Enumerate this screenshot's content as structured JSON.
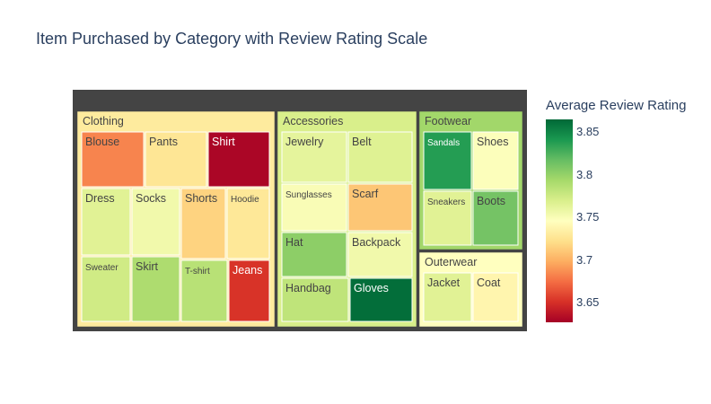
{
  "title": "Item Purchased by Category with Review Rating Scale",
  "colorbar": {
    "title": "Average Review Rating",
    "ticks": [
      "3.85",
      "3.8",
      "3.75",
      "3.7",
      "3.65"
    ],
    "tick_values": [
      3.85,
      3.8,
      3.75,
      3.7,
      3.65
    ],
    "range": [
      3.627,
      3.865
    ]
  },
  "chart_data": {
    "type": "treemap",
    "title": "Item Purchased by Category with Review Rating Scale",
    "color_label": "Average Review Rating",
    "categories": [
      {
        "name": "Clothing",
        "rating": 3.731,
        "items": [
          {
            "name": "Blouse",
            "rating": 3.683
          },
          {
            "name": "Pants",
            "rating": 3.727
          },
          {
            "name": "Shirt",
            "rating": 3.63
          },
          {
            "name": "Dress",
            "rating": 3.765
          },
          {
            "name": "Socks",
            "rating": 3.755
          },
          {
            "name": "Shorts",
            "rating": 3.716
          },
          {
            "name": "Hoodie",
            "rating": 3.728
          },
          {
            "name": "Sweater",
            "rating": 3.774
          },
          {
            "name": "Skirt",
            "rating": 3.79
          },
          {
            "name": "T-shirt",
            "rating": 3.785
          },
          {
            "name": "Jeans",
            "rating": 3.652
          }
        ]
      },
      {
        "name": "Accessories",
        "rating": 3.77,
        "items": [
          {
            "name": "Jewelry",
            "rating": 3.762
          },
          {
            "name": "Belt",
            "rating": 3.766
          },
          {
            "name": "Sunglasses",
            "rating": 3.75
          },
          {
            "name": "Scarf",
            "rating": 3.71
          },
          {
            "name": "Hat",
            "rating": 3.803
          },
          {
            "name": "Backpack",
            "rating": 3.755
          },
          {
            "name": "Handbag",
            "rating": 3.782
          },
          {
            "name": "Gloves",
            "rating": 3.862
          }
        ]
      },
      {
        "name": "Footwear",
        "rating": 3.795,
        "items": [
          {
            "name": "Sandals",
            "rating": 3.838
          },
          {
            "name": "Shoes",
            "rating": 3.748
          },
          {
            "name": "Sneakers",
            "rating": 3.765
          },
          {
            "name": "Boots",
            "rating": 3.812
          }
        ]
      },
      {
        "name": "Outerwear",
        "rating": 3.746,
        "items": [
          {
            "name": "Jacket",
            "rating": 3.765
          },
          {
            "name": "Coat",
            "rating": 3.738
          }
        ]
      }
    ]
  }
}
